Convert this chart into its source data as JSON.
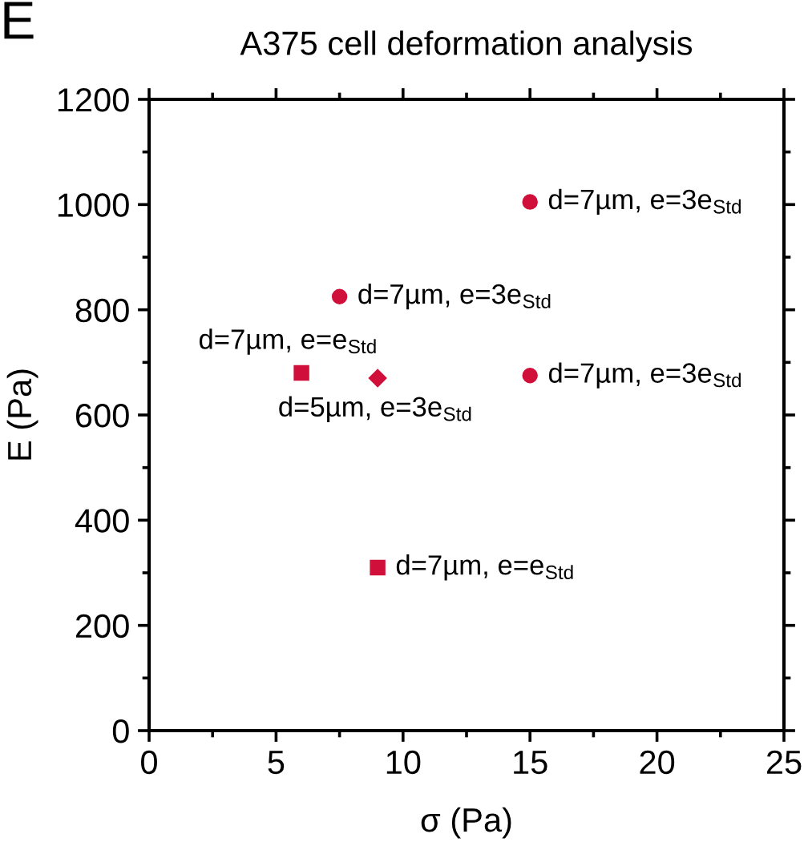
{
  "chart_data": {
    "type": "scatter",
    "title": "A375 cell deformation analysis",
    "xlabel": "σ (Pa)",
    "ylabel": "E (Pa)",
    "xlim": [
      0,
      25
    ],
    "xticks": [
      0,
      5,
      10,
      15,
      20,
      25
    ],
    "ylim": [
      0,
      1200
    ],
    "yticks": [
      0,
      200,
      400,
      600,
      800,
      1000,
      1200
    ],
    "grid": false,
    "series": [
      {
        "color": "#d0103a",
        "marker": "circle",
        "x": [
          15,
          7.5,
          15
        ],
        "values": [
          1005,
          825,
          675
        ]
      },
      {
        "color": "#d0103a",
        "marker": "square",
        "x": [
          6,
          9
        ],
        "values": [
          680,
          310
        ]
      },
      {
        "color": "#d0103a",
        "marker": "diamond",
        "x": [
          9
        ],
        "values": [
          670
        ]
      }
    ],
    "annotations": [
      "E",
      {
        "text": "d=7µm, e=3e$_{Std}$",
        "x": 15,
        "y": 1005
      },
      {
        "text": "d=7µm, e=3e$_{Std}$",
        "x": 7.5,
        "y": 825
      },
      {
        "text": "d=7µm, e=e$_{Std}$",
        "x": 6,
        "y": 680
      },
      {
        "text": "d=5µm, e=3e$_{Std}$",
        "x": 9,
        "y": 670
      },
      {
        "text": "d=7µm, e=3e$_{Std}$",
        "x": 15,
        "y": 675
      },
      {
        "text": "d=7µm, e=e$_{Std}$",
        "x": 9,
        "y": 310
      }
    ]
  }
}
